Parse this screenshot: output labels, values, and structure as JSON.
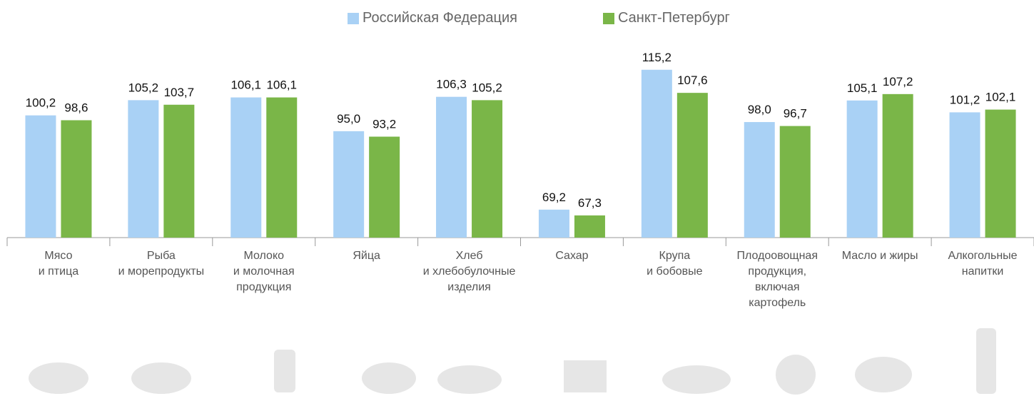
{
  "chart_data": {
    "type": "bar",
    "categories": [
      "Мясо\nи птица",
      "Рыба\nи морепродукты",
      "Молоко\nи молочная\nпродукция",
      "Яйца",
      "Хлеб\nи хлебобулочные\nизделия",
      "Сахар",
      "Крупа\nи бобовые",
      "Плодоовощная\nпродукция,\nвключая\nкартофель",
      "Масло и жиры",
      "Алкогольные\nнапитки"
    ],
    "series": [
      {
        "name": "Российская Федерация",
        "color": "#a9d1f5",
        "values": [
          100.2,
          105.2,
          106.1,
          95.0,
          106.3,
          69.2,
          115.2,
          98.0,
          105.1,
          101.2
        ],
        "value_labels": [
          "100,2",
          "105,2",
          "106,1",
          "95,0",
          "106,3",
          "69,2",
          "115,2",
          "98,0",
          "105,1",
          "101,2"
        ]
      },
      {
        "name": "Санкт-Петербург",
        "color": "#7ab648",
        "values": [
          98.6,
          103.7,
          106.1,
          93.2,
          105.2,
          67.3,
          107.6,
          96.7,
          107.2,
          102.1
        ],
        "value_labels": [
          "98,6",
          "103,7",
          "106,1",
          "93,2",
          "105,2",
          "67,3",
          "107,6",
          "96,7",
          "107,2",
          "102,1"
        ]
      }
    ],
    "ylim": [
      60,
      125
    ],
    "legend": "top"
  }
}
